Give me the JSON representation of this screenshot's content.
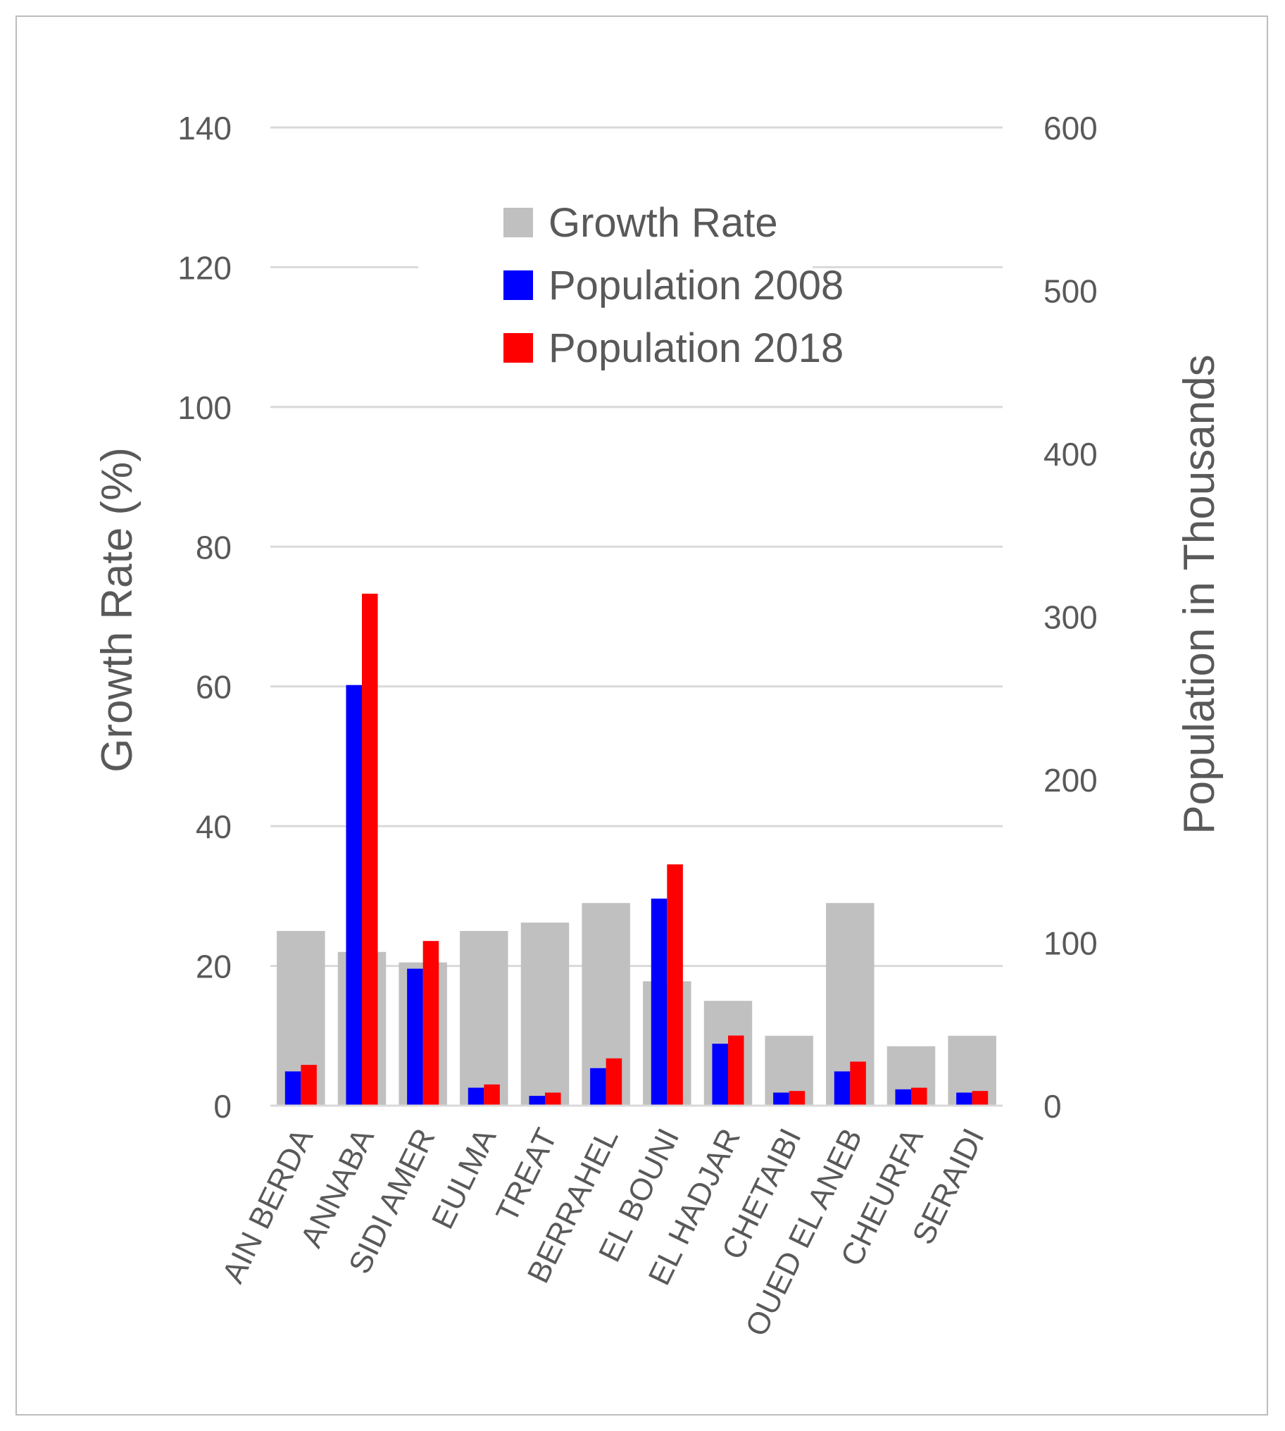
{
  "chart_data": {
    "type": "bar",
    "title": "",
    "categories": [
      "AIN BERDA",
      "ANNABA",
      "SIDI AMER",
      "EULMA",
      "TREAT",
      "BERRAHEL",
      "EL BOUNI",
      "EL HADJAR",
      "CHETAIBI",
      "OUED EL ANEB",
      "CHEURFA",
      "SERAIDI"
    ],
    "series": [
      {
        "name": "Growth Rate",
        "axis": "left",
        "color": "#c0c0c0",
        "values": [
          25,
          22,
          20.5,
          25,
          26.2,
          29,
          17.8,
          15,
          10,
          29,
          8.5,
          10
        ]
      },
      {
        "name": "Population 2008",
        "axis": "right",
        "color": "#0000ff",
        "values": [
          21,
          258,
          84,
          11,
          6,
          23,
          127,
          38,
          8,
          21,
          10,
          8
        ]
      },
      {
        "name": "Population 2018",
        "axis": "right",
        "color": "#ff0000",
        "values": [
          25,
          314,
          101,
          13,
          8,
          29,
          148,
          43,
          9,
          27,
          11,
          9
        ]
      }
    ],
    "y_left": {
      "label": "Growth Rate (%)",
      "lim": [
        0,
        140
      ],
      "ticks": [
        "0",
        "20",
        "40",
        "60",
        "80",
        "100",
        "120",
        "140"
      ]
    },
    "y_right": {
      "label": "Population in Thousands",
      "lim": [
        0,
        600
      ],
      "ticks": [
        "0",
        "100",
        "200",
        "300",
        "400",
        "500",
        "600"
      ]
    },
    "legend": {
      "position": "top-center",
      "entries": [
        "Growth Rate",
        "Population 2008",
        "Population 2018"
      ]
    },
    "grid": true,
    "colors": {
      "grid": "#d9d9d9",
      "text": "#595959"
    }
  }
}
